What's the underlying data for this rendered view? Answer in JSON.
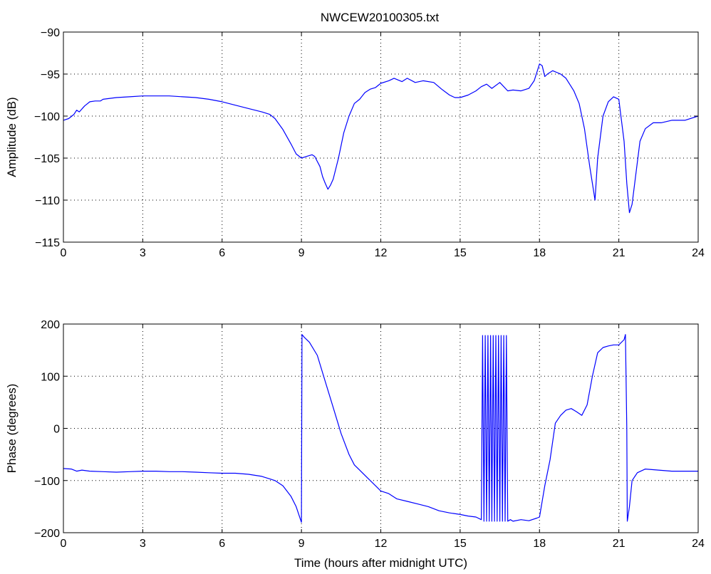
{
  "figure": {
    "title": "NWCEW20100305.txt"
  },
  "chart_data": [
    {
      "type": "line",
      "title": "NWCEW20100305.txt",
      "xlabel": "",
      "ylabel": "Amplitude (dB)",
      "xlim": [
        0,
        24
      ],
      "ylim": [
        -115,
        -90
      ],
      "xticks": [
        0,
        3,
        6,
        9,
        12,
        15,
        18,
        21,
        24
      ],
      "yticks": [
        -115,
        -110,
        -105,
        -100,
        -95,
        -90
      ],
      "grid": true,
      "color": "#0000ff",
      "series": [
        {
          "x": [
            0,
            0.2,
            0.4,
            0.5,
            0.6,
            0.8,
            1.0,
            1.2,
            1.4,
            1.5,
            2.0,
            2.5,
            3.0,
            3.5,
            4.0,
            4.5,
            5.0,
            5.5,
            6.0,
            6.5,
            7.0,
            7.5,
            7.8,
            8.0,
            8.3,
            8.6,
            8.8,
            9.0,
            9.2,
            9.4,
            9.5,
            9.7,
            9.8,
            9.9,
            10.0,
            10.1,
            10.2,
            10.4,
            10.6,
            10.8,
            11.0,
            11.2,
            11.4,
            11.6,
            11.8,
            12.0,
            12.3,
            12.5,
            12.8,
            13.0,
            13.3,
            13.6,
            14.0,
            14.3,
            14.6,
            14.8,
            15.0,
            15.3,
            15.6,
            15.8,
            16.0,
            16.2,
            16.5,
            16.8,
            17.0,
            17.3,
            17.6,
            17.8,
            18.0,
            18.1,
            18.2,
            18.3,
            18.5,
            18.8,
            19.0,
            19.3,
            19.5,
            19.7,
            19.9,
            20.0,
            20.1,
            20.2,
            20.4,
            20.6,
            20.8,
            21.0,
            21.2,
            21.3,
            21.4,
            21.5,
            21.6,
            21.8,
            22.0,
            22.3,
            22.6,
            23.0,
            23.5,
            24.0
          ],
          "y": [
            -100.5,
            -100.3,
            -99.8,
            -99.3,
            -99.5,
            -98.8,
            -98.3,
            -98.2,
            -98.2,
            -98.0,
            -97.8,
            -97.7,
            -97.6,
            -97.6,
            -97.6,
            -97.7,
            -97.8,
            -98.0,
            -98.3,
            -98.7,
            -99.1,
            -99.5,
            -99.8,
            -100.3,
            -101.6,
            -103.3,
            -104.5,
            -105.0,
            -104.8,
            -104.6,
            -104.8,
            -106.0,
            -107.2,
            -108.0,
            -108.7,
            -108.2,
            -107.5,
            -105.0,
            -102.0,
            -100.0,
            -98.5,
            -98.0,
            -97.2,
            -96.8,
            -96.6,
            -96.1,
            -95.8,
            -95.5,
            -95.9,
            -95.5,
            -96.0,
            -95.8,
            -96.0,
            -96.8,
            -97.5,
            -97.8,
            -97.8,
            -97.5,
            -97.0,
            -96.5,
            -96.2,
            -96.7,
            -96.0,
            -97.0,
            -96.9,
            -97.0,
            -96.7,
            -95.8,
            -93.8,
            -94.0,
            -95.3,
            -95.0,
            -94.6,
            -95.0,
            -95.5,
            -97.0,
            -98.5,
            -101.5,
            -106.0,
            -108.0,
            -110.0,
            -105.0,
            -100.0,
            -98.3,
            -97.7,
            -98.0,
            -103.0,
            -108.0,
            -111.5,
            -110.5,
            -108.0,
            -103.0,
            -101.5,
            -100.8,
            -100.8,
            -100.5,
            -100.5,
            -100.0
          ]
        }
      ]
    },
    {
      "type": "line",
      "title": "",
      "xlabel": "Time (hours after midnight UTC)",
      "ylabel": "Phase (degrees)",
      "xlim": [
        0,
        24
      ],
      "ylim": [
        -200,
        200
      ],
      "xticks": [
        0,
        3,
        6,
        9,
        12,
        15,
        18,
        21,
        24
      ],
      "yticks": [
        -200,
        -100,
        0,
        100,
        200
      ],
      "grid": true,
      "color": "#0000ff",
      "series": [
        {
          "x": [
            0,
            0.3,
            0.4,
            0.5,
            0.7,
            1.0,
            1.5,
            2.0,
            2.5,
            3.0,
            3.5,
            4.0,
            4.5,
            5.0,
            5.5,
            6.0,
            6.5,
            7.0,
            7.5,
            8.0,
            8.3,
            8.6,
            8.8,
            9.0,
            9.02,
            9.1,
            9.3,
            9.6,
            9.9,
            10.2,
            10.5,
            10.8,
            11.0,
            11.2,
            11.5,
            11.8,
            12.0,
            12.3,
            12.6,
            13.0,
            13.4,
            13.8,
            14.2,
            14.6,
            15.0,
            15.3,
            15.6,
            15.8,
            15.85,
            15.9,
            15.95,
            16.0,
            16.05,
            16.1,
            16.15,
            16.2,
            16.25,
            16.3,
            16.35,
            16.4,
            16.45,
            16.5,
            16.55,
            16.6,
            16.65,
            16.7,
            16.75,
            16.8,
            16.9,
            17.0,
            17.3,
            17.6,
            17.9,
            18.0,
            18.2,
            18.4,
            18.6,
            18.8,
            19.0,
            19.2,
            19.4,
            19.6,
            19.8,
            20.0,
            20.2,
            20.4,
            20.6,
            20.8,
            21.0,
            21.2,
            21.25,
            21.3,
            21.32,
            21.4,
            21.5,
            21.7,
            22.0,
            22.5,
            23.0,
            23.5,
            24.0
          ],
          "y": [
            -77,
            -78,
            -80,
            -82,
            -80,
            -82,
            -83,
            -84,
            -83,
            -82,
            -82,
            -83,
            -83,
            -84,
            -85,
            -86,
            -86,
            -88,
            -92,
            -100,
            -110,
            -130,
            -150,
            -180,
            180,
            175,
            165,
            140,
            90,
            40,
            -10,
            -50,
            -70,
            -80,
            -95,
            -110,
            -120,
            -125,
            -135,
            -140,
            -145,
            -150,
            -158,
            -162,
            -165,
            -168,
            -170,
            -175,
            178,
            -178,
            178,
            -178,
            178,
            -178,
            178,
            -178,
            178,
            -178,
            178,
            -178,
            178,
            -178,
            178,
            -178,
            178,
            -178,
            178,
            -178,
            -175,
            -178,
            -175,
            -177,
            -172,
            -170,
            -110,
            -60,
            10,
            25,
            35,
            38,
            32,
            25,
            45,
            100,
            145,
            155,
            158,
            160,
            160,
            170,
            180,
            0,
            -178,
            -150,
            -100,
            -85,
            -78,
            -80,
            -82,
            -82,
            -82
          ]
        }
      ]
    }
  ]
}
